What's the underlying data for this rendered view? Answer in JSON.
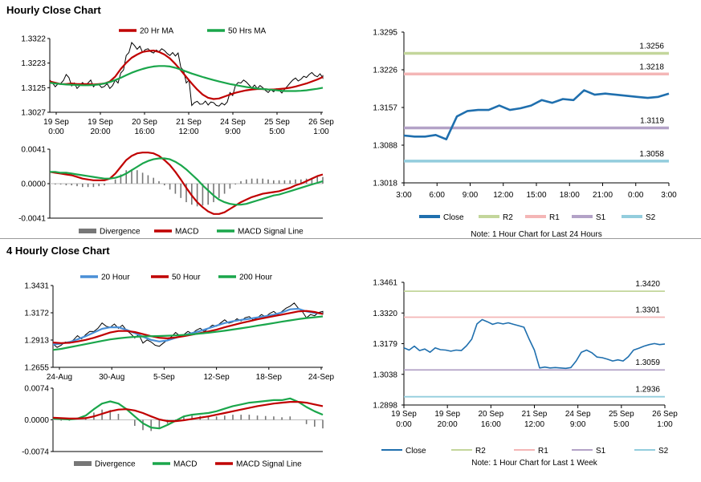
{
  "section1_title": "Hourly Close Chart",
  "section2_title": "4 Hourly Close Chart",
  "colors": {
    "blue": "#1f6fae",
    "red": "#c00000",
    "green": "#1aa64b",
    "sma_blue": "#4a8fd6",
    "r2": "#c3d69b",
    "r1": "#f4b6b6",
    "s1": "#b3a2c7",
    "s2": "#93cddd",
    "divergence": "#777777",
    "price": "#000000"
  },
  "chart_data": [
    {
      "id": "hourly_price",
      "type": "line",
      "legend": [
        "20 Hr MA",
        "50 Hrs MA"
      ],
      "y_ticks": [
        "1.3322",
        "1.3223",
        "1.3125",
        "1.3027"
      ],
      "ylim": [
        1.3027,
        1.3322
      ],
      "x_ticks": [
        [
          "19 Sep",
          "0:00"
        ],
        [
          "19 Sep",
          "20:00"
        ],
        [
          "20 Sep",
          "16:00"
        ],
        [
          "21 Sep",
          "12:00"
        ],
        [
          "24 Sep",
          "9:00"
        ],
        [
          "25 Sep",
          "5:00"
        ],
        [
          "26 Sep",
          "1:00"
        ]
      ],
      "series": [
        {
          "name": "Price",
          "values": [
            1.315,
            1.3135,
            1.3148,
            1.3172,
            1.3138,
            1.3128,
            1.314,
            1.315,
            1.3135,
            1.3132,
            1.3136,
            1.3128,
            1.315,
            1.319,
            1.326,
            1.33,
            1.3285,
            1.3272,
            1.3275,
            1.327,
            1.3275,
            1.3268,
            1.326,
            1.3258,
            1.32,
            1.315,
            1.306,
            1.3065,
            1.3066,
            1.3062,
            1.306,
            1.3058,
            1.3062,
            1.31,
            1.314,
            1.315,
            1.3142,
            1.313,
            1.3128,
            1.312,
            1.3112,
            1.3115,
            1.311,
            1.3125,
            1.315,
            1.3158,
            1.3165,
            1.3172,
            1.318,
            1.3175,
            1.317
          ]
        },
        {
          "name": "20 Hr MA",
          "values": [
            1.315,
            1.3145,
            1.314,
            1.314,
            1.3142,
            1.314,
            1.314,
            1.314,
            1.3138,
            1.314,
            1.3142,
            1.315,
            1.317,
            1.32,
            1.3225,
            1.3245,
            1.3258,
            1.3268,
            1.3272,
            1.3274,
            1.3268,
            1.3258,
            1.3242,
            1.322,
            1.3195,
            1.3168,
            1.3142,
            1.3118,
            1.3098,
            1.3085,
            1.308,
            1.3082,
            1.309,
            1.3098,
            1.3105,
            1.311,
            1.3115,
            1.3118,
            1.312,
            1.312,
            1.3118,
            1.3118,
            1.312,
            1.3122,
            1.3125,
            1.313,
            1.3136,
            1.3142,
            1.315,
            1.3158,
            1.3168
          ]
        },
        {
          "name": "50 Hrs MA",
          "values": [
            1.3145,
            1.3142,
            1.314,
            1.3138,
            1.3137,
            1.3136,
            1.3135,
            1.3135,
            1.3136,
            1.3138,
            1.3142,
            1.3148,
            1.3156,
            1.3165,
            1.3175,
            1.3185,
            1.3193,
            1.32,
            1.3206,
            1.321,
            1.3212,
            1.3212,
            1.321,
            1.3205,
            1.3198,
            1.319,
            1.3182,
            1.3175,
            1.3168,
            1.3162,
            1.3156,
            1.315,
            1.3145,
            1.314,
            1.3136,
            1.3132,
            1.3128,
            1.3125,
            1.3122,
            1.312,
            1.3118,
            1.3116,
            1.3114,
            1.3112,
            1.3112,
            1.3112,
            1.3113,
            1.3115,
            1.3118,
            1.3121,
            1.3125
          ]
        }
      ]
    },
    {
      "id": "hourly_macd",
      "type": "line",
      "legend": [
        "Divergence",
        "MACD",
        "MACD Signal Line"
      ],
      "y_ticks": [
        "0.0041",
        "0.0000",
        "-0.0041"
      ],
      "ylim": [
        -0.0041,
        0.0041
      ],
      "series": [
        {
          "name": "MACD",
          "values": [
            0.0014,
            0.0013,
            0.0012,
            0.0011,
            0.001,
            0.0008,
            0.0006,
            0.0005,
            0.0004,
            0.0004,
            0.0004,
            0.0006,
            0.0012,
            0.002,
            0.0028,
            0.0033,
            0.0036,
            0.0037,
            0.0037,
            0.0036,
            0.0033,
            0.0028,
            0.0022,
            0.0014,
            0.0005,
            -0.0005,
            -0.0014,
            -0.0022,
            -0.0028,
            -0.0033,
            -0.0036,
            -0.0036,
            -0.0034,
            -0.003,
            -0.0026,
            -0.0022,
            -0.0019,
            -0.0016,
            -0.0014,
            -0.0012,
            -0.0011,
            -0.001,
            -0.0009,
            -0.0007,
            -0.0005,
            -0.0002,
            0.0,
            0.0003,
            0.0006,
            0.0009,
            0.0011
          ]
        },
        {
          "name": "MACD Signal Line",
          "values": [
            0.0014,
            0.0014,
            0.0013,
            0.0013,
            0.0012,
            0.0011,
            0.001,
            0.0009,
            0.0008,
            0.0007,
            0.0006,
            0.0006,
            0.0007,
            0.0009,
            0.0012,
            0.0016,
            0.002,
            0.0024,
            0.0027,
            0.0029,
            0.003,
            0.003,
            0.0029,
            0.0026,
            0.0022,
            0.0017,
            0.0011,
            0.0005,
            -0.0002,
            -0.0008,
            -0.0014,
            -0.0019,
            -0.0022,
            -0.0024,
            -0.0025,
            -0.0025,
            -0.0024,
            -0.0022,
            -0.002,
            -0.0018,
            -0.0016,
            -0.0014,
            -0.0013,
            -0.0011,
            -0.0009,
            -0.0007,
            -0.0005,
            -0.0003,
            -0.0001,
            0.0001,
            0.0003
          ]
        }
      ]
    },
    {
      "id": "hourly_levels",
      "type": "line",
      "y_ticks": [
        "1.3295",
        "1.3226",
        "1.3157",
        "1.3088",
        "1.3018"
      ],
      "ylim": [
        1.3018,
        1.3295
      ],
      "x_ticks": [
        "3:00",
        "6:00",
        "9:00",
        "12:00",
        "15:00",
        "18:00",
        "21:00",
        "0:00",
        "3:00"
      ],
      "levels": [
        {
          "name": "R2",
          "value": 1.3256,
          "label": "1.3256"
        },
        {
          "name": "R1",
          "value": 1.3218,
          "label": "1.3218"
        },
        {
          "name": "S1",
          "value": 1.3119,
          "label": "1.3119"
        },
        {
          "name": "S2",
          "value": 1.3058,
          "label": "1.3058"
        }
      ],
      "series": [
        {
          "name": "Close",
          "values": [
            1.3105,
            1.3103,
            1.3103,
            1.3106,
            1.3098,
            1.314,
            1.315,
            1.3152,
            1.3152,
            1.316,
            1.3152,
            1.3155,
            1.316,
            1.317,
            1.3165,
            1.3172,
            1.317,
            1.3188,
            1.318,
            1.3182,
            1.318,
            1.3178,
            1.3176,
            1.3174,
            1.3176,
            1.3182
          ]
        }
      ],
      "legend": [
        "Close",
        "R2",
        "R1",
        "S1",
        "S2"
      ],
      "note": "Note: 1 Hour Chart for Last 24 Hours"
    },
    {
      "id": "four_hourly_price",
      "type": "line",
      "legend": [
        "20 Hour",
        "50 Hour",
        "200 Hour"
      ],
      "y_ticks": [
        "1.3431",
        "1.3172",
        "1.2913",
        "1.2655"
      ],
      "ylim": [
        1.2655,
        1.3431
      ],
      "x_ticks": [
        "24-Aug",
        "30-Aug",
        "5-Sep",
        "12-Sep",
        "18-Sep",
        "24-Sep"
      ],
      "series": [
        {
          "name": "Price",
          "values": [
            1.286,
            1.288,
            1.29,
            1.294,
            1.298,
            1.301,
            1.306,
            1.305,
            1.304,
            1.299,
            1.295,
            1.29,
            1.288,
            1.287,
            1.293,
            1.297,
            1.298,
            1.299,
            1.301,
            1.304,
            1.306,
            1.309,
            1.31,
            1.311,
            1.312,
            1.314,
            1.315,
            1.317,
            1.32,
            1.325,
            1.32,
            1.314,
            1.316,
            1.317
          ]
        },
        {
          "name": "20 Hour",
          "values": [
            1.287,
            1.288,
            1.2895,
            1.292,
            1.295,
            1.2985,
            1.302,
            1.3035,
            1.3035,
            1.301,
            1.298,
            1.2945,
            1.2915,
            1.29,
            1.291,
            1.2935,
            1.296,
            1.298,
            1.3,
            1.3025,
            1.305,
            1.3075,
            1.3092,
            1.3105,
            1.3115,
            1.3128,
            1.314,
            1.3155,
            1.3175,
            1.3205,
            1.321,
            1.3185,
            1.317,
            1.3165
          ]
        },
        {
          "name": "50 Hour",
          "values": [
            1.289,
            1.2885,
            1.2888,
            1.29,
            1.2915,
            1.2935,
            1.296,
            1.2985,
            1.3,
            1.3,
            1.299,
            1.297,
            1.295,
            1.2935,
            1.293,
            1.2938,
            1.295,
            1.2965,
            1.298,
            1.2995,
            1.3012,
            1.3035,
            1.3055,
            1.3075,
            1.3092,
            1.311,
            1.3125,
            1.314,
            1.3155,
            1.317,
            1.3185,
            1.319,
            1.318,
            1.316
          ]
        },
        {
          "name": "200 Hour",
          "values": [
            1.282,
            1.283,
            1.2845,
            1.286,
            1.2875,
            1.289,
            1.2905,
            1.292,
            1.293,
            1.2938,
            1.2944,
            1.2948,
            1.295,
            1.2952,
            1.2955,
            1.2958,
            1.2962,
            1.2968,
            1.2975,
            1.2983,
            1.2992,
            1.3002,
            1.3013,
            1.3025,
            1.3037,
            1.305,
            1.3062,
            1.3075,
            1.3088,
            1.31,
            1.3112,
            1.3122,
            1.313,
            1.3138
          ]
        }
      ]
    },
    {
      "id": "four_hourly_macd",
      "type": "line",
      "legend": [
        "Divergence",
        "MACD",
        "MACD Signal Line"
      ],
      "y_ticks": [
        "0.0074",
        "0.0000",
        "-0.0074"
      ],
      "ylim": [
        -0.0074,
        0.0074
      ],
      "series": [
        {
          "name": "MACD",
          "values": [
            0.0003,
            0.0002,
            0.0001,
            0.0003,
            0.001,
            0.0025,
            0.0038,
            0.0043,
            0.0038,
            0.0025,
            0.0008,
            -0.0008,
            -0.0018,
            -0.002,
            -0.0012,
            -0.0002,
            0.0008,
            0.0012,
            0.0014,
            0.0016,
            0.002,
            0.0026,
            0.0032,
            0.0036,
            0.004,
            0.0042,
            0.0044,
            0.0046,
            0.0046,
            0.005,
            0.0042,
            0.003,
            0.002,
            0.0012
          ]
        },
        {
          "name": "MACD Signal Line",
          "values": [
            0.0005,
            0.0004,
            0.0003,
            0.0003,
            0.0004,
            0.0008,
            0.0014,
            0.002,
            0.0024,
            0.0025,
            0.0022,
            0.0016,
            0.0008,
            0.0001,
            -0.0003,
            -0.0003,
            -0.0001,
            0.0002,
            0.0005,
            0.0008,
            0.0012,
            0.0016,
            0.002,
            0.0024,
            0.0028,
            0.0032,
            0.0035,
            0.0038,
            0.004,
            0.0042,
            0.0042,
            0.004,
            0.0036,
            0.0032
          ]
        }
      ]
    },
    {
      "id": "four_hourly_levels",
      "type": "line",
      "y_ticks": [
        "1.3461",
        "1.3320",
        "1.3179",
        "1.3038",
        "1.2898"
      ],
      "ylim": [
        1.2898,
        1.3461
      ],
      "x_ticks": [
        [
          "19 Sep",
          "0:00"
        ],
        [
          "19 Sep",
          "20:00"
        ],
        [
          "20 Sep",
          "16:00"
        ],
        [
          "21 Sep",
          "12:00"
        ],
        [
          "24 Sep",
          "9:00"
        ],
        [
          "25 Sep",
          "5:00"
        ],
        [
          "26 Sep",
          "1:00"
        ]
      ],
      "levels": [
        {
          "name": "R2",
          "value": 1.342,
          "label": "1.3420"
        },
        {
          "name": "R1",
          "value": 1.3301,
          "label": "1.3301"
        },
        {
          "name": "S1",
          "value": 1.3059,
          "label": "1.3059"
        },
        {
          "name": "S2",
          "value": 1.2936,
          "label": "1.2936"
        }
      ],
      "series": [
        {
          "name": "Close",
          "values": [
            1.316,
            1.315,
            1.3168,
            1.3148,
            1.3155,
            1.314,
            1.316,
            1.3152,
            1.315,
            1.3145,
            1.315,
            1.3148,
            1.317,
            1.32,
            1.327,
            1.329,
            1.328,
            1.3268,
            1.3275,
            1.327,
            1.3275,
            1.3268,
            1.3262,
            1.3255,
            1.32,
            1.315,
            1.3068,
            1.3072,
            1.3068,
            1.307,
            1.3068,
            1.3066,
            1.307,
            1.31,
            1.314,
            1.315,
            1.3138,
            1.3118,
            1.3115,
            1.3108,
            1.31,
            1.3105,
            1.31,
            1.312,
            1.315,
            1.3158,
            1.3168,
            1.3175,
            1.318,
            1.3175,
            1.3178
          ]
        }
      ],
      "legend": [
        "Close",
        "R2",
        "R1",
        "S1",
        "S2"
      ],
      "note": "Note: 1 Hour Chart for Last 1 Week"
    }
  ]
}
